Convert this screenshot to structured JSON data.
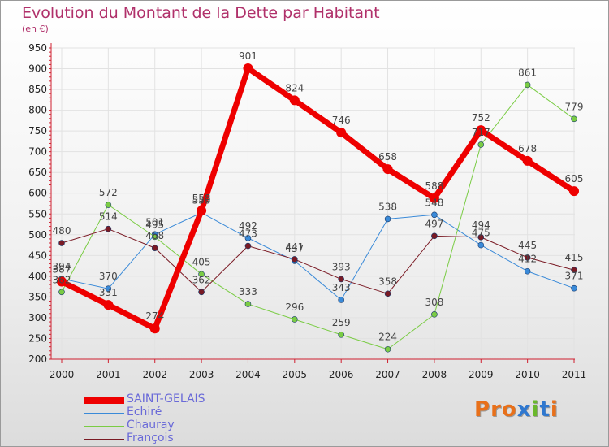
{
  "header": {
    "title": "Evolution du Montant de la Dette par Habitant",
    "subtitle": "(en €)"
  },
  "logo": {
    "text": "Proxiti",
    "letter_colors": [
      "#e8701a",
      "#e8701a",
      "#e8701a",
      "#2f78d0",
      "#6ab82c",
      "#2f78d0",
      "#e8701a"
    ]
  },
  "colors": {
    "axis": "#d02030",
    "grid": "#e2e2e2",
    "title": "#b0306a",
    "legend_text": "#6a6ad8"
  },
  "chart_data": {
    "type": "line",
    "x": [
      "2000",
      "2001",
      "2002",
      "2003",
      "2004",
      "2005",
      "2006",
      "2007",
      "2008",
      "2009",
      "2010",
      "2011"
    ],
    "ylim": [
      200,
      950
    ],
    "yticks": [
      200,
      250,
      300,
      350,
      400,
      450,
      500,
      550,
      600,
      650,
      700,
      750,
      800,
      850,
      900,
      950
    ],
    "grid": true,
    "legend_position": "bottom-left",
    "series": [
      {
        "name": "SAINT-GELAIS",
        "color": "#ee0000",
        "width": 7,
        "marker_radius": 6,
        "values": [
          387,
          331,
          274,
          558,
          901,
          824,
          746,
          658,
          588,
          752,
          678,
          605
        ]
      },
      {
        "name": "Echiré",
        "color": "#3a8ad8",
        "width": 1,
        "marker_radius": 3.5,
        "values": [
          394,
          370,
          501,
          553,
          492,
          437,
          343,
          538,
          548,
          475,
          412,
          371
        ]
      },
      {
        "name": "Chauray",
        "color": "#7acc44",
        "width": 1,
        "marker_radius": 3.5,
        "values": [
          362,
          572,
          495,
          405,
          333,
          296,
          259,
          224,
          308,
          717,
          861,
          779
        ]
      },
      {
        "name": "François",
        "color": "#7a1a24",
        "width": 1,
        "marker_radius": 3.5,
        "values": [
          480,
          514,
          468,
          362,
          473,
          441,
          393,
          358,
          497,
          494,
          445,
          415
        ]
      }
    ]
  }
}
